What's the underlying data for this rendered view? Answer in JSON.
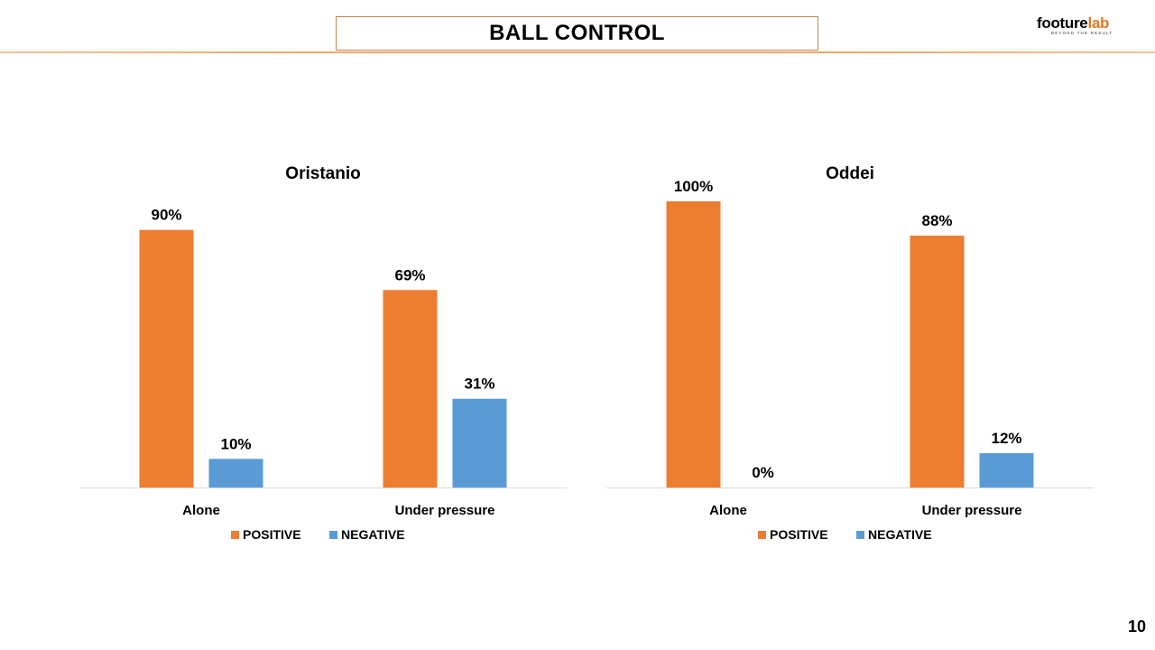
{
  "header": {
    "title": "BALL CONTROL",
    "logo": {
      "brand_main": "footure",
      "brand_accent": "lab",
      "tagline": "BEYOND THE RESULT",
      "accent_color": "#e87722"
    }
  },
  "page_number": "10",
  "colors": {
    "positive": "#ed7d31",
    "negative": "#5b9bd5",
    "accent_line": "#f0a060"
  },
  "chart_data": [
    {
      "type": "bar",
      "title": "Oristanio",
      "categories": [
        "Alone",
        "Under pressure"
      ],
      "series": [
        {
          "name": "POSITIVE",
          "values": [
            90,
            69
          ],
          "labels": [
            "90%",
            "69%"
          ]
        },
        {
          "name": "NEGATIVE",
          "values": [
            10,
            31
          ],
          "labels": [
            "10%",
            "31%"
          ]
        }
      ],
      "ylim": [
        0,
        100
      ],
      "unit": "%",
      "grid": false,
      "legend": "bottom"
    },
    {
      "type": "bar",
      "title": "Oddei",
      "categories": [
        "Alone",
        "Under pressure"
      ],
      "series": [
        {
          "name": "POSITIVE",
          "values": [
            100,
            88
          ],
          "labels": [
            "100%",
            "88%"
          ]
        },
        {
          "name": "NEGATIVE",
          "values": [
            0,
            12
          ],
          "labels": [
            "0%",
            "12%"
          ]
        }
      ],
      "ylim": [
        0,
        100
      ],
      "unit": "%",
      "grid": false,
      "legend": "bottom"
    }
  ]
}
